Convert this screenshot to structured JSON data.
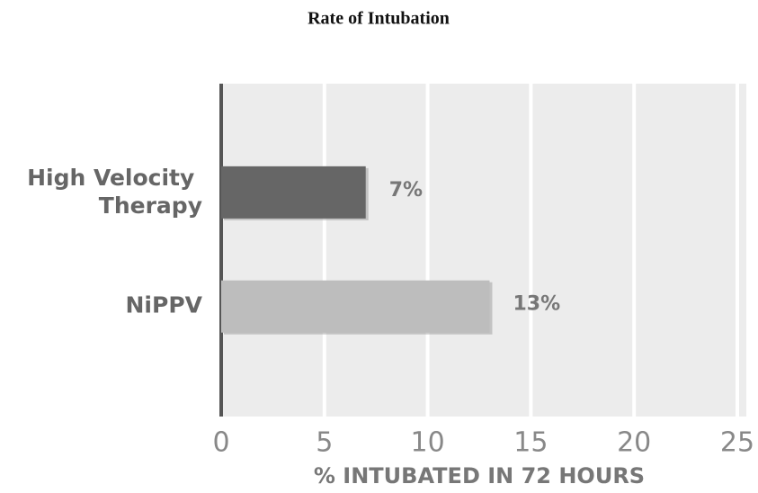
{
  "chart_data": {
    "type": "barh",
    "title": "Rate of Intubation",
    "categories": [
      "High Velocity Therapy",
      "NiPPV"
    ],
    "values": [
      7,
      13
    ],
    "value_labels": [
      "7%",
      "13%"
    ],
    "colors": [
      "#666666",
      "#bdbdbd"
    ],
    "xlabel": "% INTUBATED IN 72 HOURS",
    "xlim": [
      0,
      25
    ],
    "xticks": [
      0,
      5,
      10,
      15,
      20,
      25
    ],
    "grid": true
  }
}
